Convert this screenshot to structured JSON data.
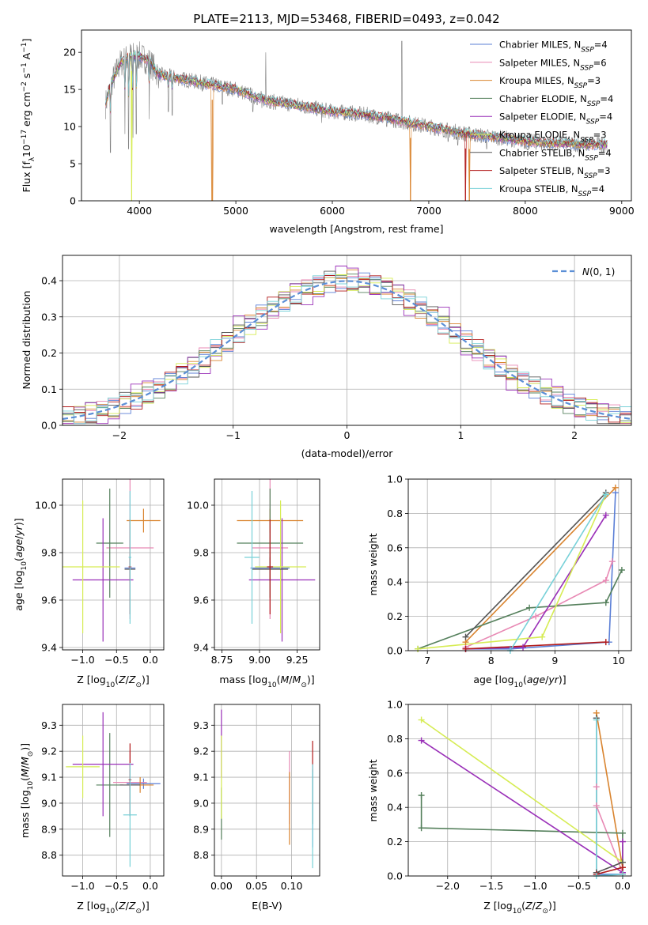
{
  "figure_title": "PLATE=2113, MJD=53468, FIBERID=0493, z=0.042",
  "colors": {
    "chabrier_miles": "#5b7fd6",
    "salpeter_miles": "#e889b4",
    "kroupa_miles": "#d9842f",
    "chabrier_elodie": "#55805c",
    "salpeter_elodie": "#9a30b8",
    "kroupa_elodie": "#d6ec54",
    "chabrier_stelib": "#555555",
    "salpeter_stelib": "#b21b1b",
    "kroupa_stelib": "#78d1d8",
    "data": "#808080",
    "normal": "#5b8fd6"
  },
  "chart_data": [
    {
      "id": "spectrum",
      "type": "line",
      "title": "PLATE=2113, MJD=53468, FIBERID=0493, z=0.042",
      "xlabel": "wavelength [Angstrom, rest frame]",
      "ylabel": "Flux [f_λ 10^-17 erg cm^-2 s^-1 A^-1]",
      "xlim": [
        3400,
        9100
      ],
      "ylim": [
        0,
        23
      ],
      "xticks": [
        4000,
        5000,
        6000,
        7000,
        8000,
        9000
      ],
      "yticks": [
        0,
        5,
        10,
        15,
        20
      ],
      "grid": false,
      "legend_position": "top-right",
      "series": [
        {
          "name": "Chabrier MILES, N_SSP=4",
          "color_key": "chabrier_miles",
          "sub": "SSP",
          "tail": "=4"
        },
        {
          "name": "Salpeter MILES, N_SSP=6",
          "color_key": "salpeter_miles",
          "sub": "SSP",
          "tail": "=6"
        },
        {
          "name": "Kroupa MILES, N_SSP=3",
          "color_key": "kroupa_miles",
          "sub": "SSP",
          "tail": "=3"
        },
        {
          "name": "Chabrier ELODIE, N_SSP=4",
          "color_key": "chabrier_elodie",
          "sub": "SSP",
          "tail": "=4"
        },
        {
          "name": "Salpeter ELODIE, N_SSP=4",
          "color_key": "salpeter_elodie",
          "sub": "SSP",
          "tail": "=4"
        },
        {
          "name": "Kroupa ELODIE, N_SSP=3",
          "color_key": "kroupa_elodie",
          "sub": "SSP",
          "tail": "=3"
        },
        {
          "name": "Chabrier STELIB, N_SSP=4",
          "color_key": "chabrier_stelib",
          "sub": "SSP",
          "tail": "=4"
        },
        {
          "name": "Salpeter STELIB, N_SSP=3",
          "color_key": "salpeter_stelib",
          "sub": "SSP",
          "tail": "=3"
        },
        {
          "name": "Kroupa STELIB, N_SSP=4",
          "color_key": "kroupa_stelib",
          "sub": "SSP",
          "tail": "=4"
        }
      ],
      "continuum": {
        "x": [
          3650,
          3700,
          3800,
          3900,
          4000,
          4100,
          4200,
          4400,
          4600,
          4800,
          5000,
          5200,
          5400,
          5600,
          5800,
          6000,
          6200,
          6400,
          6600,
          6800,
          7000,
          7200,
          7400,
          7600,
          7800,
          8000,
          8200,
          8400,
          8600,
          8800
        ],
        "y": [
          13.0,
          15.5,
          18.5,
          19.5,
          19.5,
          18.8,
          17.0,
          16.5,
          16.0,
          15.5,
          15.0,
          14.0,
          13.3,
          13.0,
          12.5,
          12.0,
          11.8,
          11.5,
          11.0,
          10.5,
          10.0,
          9.5,
          9.0,
          8.7,
          8.4,
          8.0,
          7.8,
          7.7,
          7.6,
          7.6
        ]
      },
      "absorption_lines": [
        {
          "x": 3700,
          "y": 6.5
        },
        {
          "x": 3850,
          "y": 9.0
        },
        {
          "x": 3889,
          "y": 7.0
        },
        {
          "x": 3934,
          "y": 8.5
        },
        {
          "x": 3969,
          "y": 9.0
        },
        {
          "x": 4102,
          "y": 11.0
        },
        {
          "x": 4300,
          "y": 12.0
        },
        {
          "x": 4340,
          "y": 11.5
        },
        {
          "x": 4861,
          "y": 13.0
        },
        {
          "x": 5175,
          "y": 12.0
        },
        {
          "x": 5270,
          "y": 12.5
        },
        {
          "x": 5890,
          "y": 10.5
        },
        {
          "x": 6563,
          "y": 10.0
        },
        {
          "x": 7200,
          "y": 8.0
        },
        {
          "x": 7300,
          "y": 7.5
        },
        {
          "x": 7600,
          "y": 7.0
        }
      ],
      "emission_lines": [
        {
          "x": 5310,
          "y": 20.0
        },
        {
          "x": 6720,
          "y": 21.5
        }
      ],
      "model_dropouts": [
        {
          "x": 3920,
          "color_key": "kroupa_elodie"
        },
        {
          "x": 4755,
          "color_key": "kroupa_miles"
        },
        {
          "x": 6810,
          "color_key": "kroupa_miles"
        },
        {
          "x": 7380,
          "color_key": "salpeter_stelib"
        },
        {
          "x": 7420,
          "color_key": "kroupa_miles"
        }
      ]
    },
    {
      "id": "residuals",
      "type": "line",
      "xlabel": "(data-model)/error",
      "ylabel": "Normed distribution",
      "xlim": [
        -2.5,
        2.5
      ],
      "ylim": [
        0,
        0.47
      ],
      "xticks": [
        -2,
        -1,
        0,
        1,
        2
      ],
      "yticks": [
        0.0,
        0.1,
        0.2,
        0.3,
        0.4
      ],
      "grid": true,
      "legend_position": "top-right",
      "legend": "N(0,1)",
      "bin_width": 0.1,
      "bins_x0": -2.5,
      "reference_curve": {
        "name": "N(0,1)",
        "mu": 0,
        "sigma": 1
      },
      "hist_jitter": [
        0.012,
        -0.018,
        0.022,
        -0.01,
        0.03,
        -0.025,
        0.015,
        -0.03,
        0.008,
        0.026,
        -0.014,
        0.02,
        -0.022,
        0.035,
        -0.008,
        0.018,
        -0.028,
        0.01
      ]
    },
    {
      "id": "age_vs_Z",
      "type": "scatter",
      "xlabel": "Z [log10(Z/Z☉)]",
      "ylabel": "age [log10(age/yr)]",
      "xlim": [
        -1.3,
        0.2
      ],
      "ylim": [
        9.39,
        10.11
      ],
      "xticks": [
        -1.0,
        -0.5,
        0.0
      ],
      "yticks": [
        9.4,
        9.6,
        9.8,
        10.0
      ],
      "points": [
        {
          "x": -0.3,
          "y": 9.735,
          "xerr": 0.08,
          "yerr": 0.04,
          "color_key": "chabrier_miles"
        },
        {
          "x": -0.3,
          "y": 9.82,
          "xerr": 0.35,
          "yerr": 0.3,
          "color_key": "salpeter_miles"
        },
        {
          "x": -0.1,
          "y": 9.935,
          "xerr": 0.25,
          "yerr": 0.05,
          "color_key": "kroupa_miles"
        },
        {
          "x": -0.6,
          "y": 9.84,
          "xerr": 0.2,
          "yerr": 0.23,
          "color_key": "chabrier_elodie"
        },
        {
          "x": -0.7,
          "y": 9.685,
          "xerr": 0.45,
          "yerr": 0.26,
          "color_key": "salpeter_elodie"
        },
        {
          "x": -1.0,
          "y": 9.74,
          "xerr": 0.55,
          "yerr": 0.28,
          "color_key": "kroupa_elodie"
        },
        {
          "x": -0.3,
          "y": 9.73,
          "xerr": 0.08,
          "yerr": 0.05,
          "color_key": "chabrier_stelib"
        },
        {
          "x": -0.3,
          "y": 9.74,
          "xerr": 0.02,
          "yerr": 0.2,
          "color_key": "salpeter_stelib"
        },
        {
          "x": -0.3,
          "y": 9.78,
          "xerr": 0.02,
          "yerr": 0.28,
          "color_key": "kroupa_stelib"
        }
      ]
    },
    {
      "id": "age_vs_mass",
      "type": "scatter",
      "xlabel": "mass [log10(M/M☉)]",
      "ylabel": "",
      "xlim": [
        8.7,
        9.4
      ],
      "ylim": [
        9.39,
        10.11
      ],
      "xticks": [
        8.75,
        9.0,
        9.25
      ],
      "yticks": [
        9.4,
        9.6,
        9.8,
        10.0
      ],
      "points": [
        {
          "x": 9.07,
          "y": 9.735,
          "xerr": 0.13,
          "yerr": 0.04,
          "color_key": "chabrier_miles"
        },
        {
          "x": 9.07,
          "y": 9.82,
          "xerr": 0.12,
          "yerr": 0.3,
          "color_key": "salpeter_miles"
        },
        {
          "x": 9.07,
          "y": 9.935,
          "xerr": 0.22,
          "yerr": 0.05,
          "color_key": "kroupa_miles"
        },
        {
          "x": 9.07,
          "y": 9.84,
          "xerr": 0.22,
          "yerr": 0.23,
          "color_key": "chabrier_elodie"
        },
        {
          "x": 9.15,
          "y": 9.685,
          "xerr": 0.22,
          "yerr": 0.26,
          "color_key": "salpeter_elodie"
        },
        {
          "x": 9.14,
          "y": 9.74,
          "xerr": 0.17,
          "yerr": 0.28,
          "color_key": "kroupa_elodie"
        },
        {
          "x": 9.07,
          "y": 9.73,
          "xerr": 0.12,
          "yerr": 0.05,
          "color_key": "chabrier_stelib"
        },
        {
          "x": 9.07,
          "y": 9.74,
          "xerr": 0.02,
          "yerr": 0.2,
          "color_key": "salpeter_stelib"
        },
        {
          "x": 8.95,
          "y": 9.78,
          "xerr": 0.05,
          "yerr": 0.28,
          "color_key": "kroupa_stelib"
        }
      ]
    },
    {
      "id": "mass_weight_vs_age",
      "type": "line",
      "xlabel": "age [log10(age/yr)]",
      "ylabel": "mass weight",
      "xlim": [
        6.7,
        10.2
      ],
      "ylim": [
        0,
        1
      ],
      "xticks": [
        7,
        8,
        9,
        10
      ],
      "yticks": [
        0.0,
        0.2,
        0.4,
        0.6,
        0.8,
        1.0
      ],
      "grid": true,
      "series": [
        {
          "color_key": "chabrier_miles",
          "x": [
            7.6,
            8.3,
            9.85,
            9.95
          ],
          "y": [
            0.01,
            0.01,
            0.05,
            0.92
          ]
        },
        {
          "color_key": "salpeter_miles",
          "x": [
            7.6,
            8.7,
            9.8,
            9.9
          ],
          "y": [
            0.02,
            0.2,
            0.41,
            0.52
          ]
        },
        {
          "color_key": "kroupa_miles",
          "x": [
            7.6,
            9.95
          ],
          "y": [
            0.05,
            0.95
          ]
        },
        {
          "color_key": "chabrier_elodie",
          "x": [
            6.85,
            8.6,
            9.8,
            10.05
          ],
          "y": [
            0.01,
            0.25,
            0.28,
            0.47
          ]
        },
        {
          "color_key": "salpeter_elodie",
          "x": [
            7.6,
            8.5,
            9.8
          ],
          "y": [
            0.01,
            0.02,
            0.79
          ]
        },
        {
          "color_key": "kroupa_elodie",
          "x": [
            6.85,
            8.8,
            9.8
          ],
          "y": [
            0.01,
            0.08,
            0.91
          ]
        },
        {
          "color_key": "chabrier_stelib",
          "x": [
            7.6,
            9.8
          ],
          "y": [
            0.08,
            0.92
          ]
        },
        {
          "color_key": "salpeter_stelib",
          "x": [
            7.6,
            9.8
          ],
          "y": [
            0.01,
            0.05
          ]
        },
        {
          "color_key": "kroupa_stelib",
          "x": [
            8.3,
            9.8
          ],
          "y": [
            0.0,
            0.91
          ]
        }
      ]
    },
    {
      "id": "mass_vs_Z",
      "type": "scatter",
      "xlabel": "Z [log10(Z/Z☉)]",
      "ylabel": "mass [log10(M/M☉)]",
      "xlim": [
        -1.3,
        0.2
      ],
      "ylim": [
        8.72,
        9.38
      ],
      "xticks": [
        -1.0,
        -0.5,
        0.0
      ],
      "yticks": [
        8.8,
        8.9,
        9.0,
        9.1,
        9.2,
        9.3
      ],
      "points": [
        {
          "x": -0.1,
          "y": 9.075,
          "xerr": 0.25,
          "yerr": 0.02,
          "color_key": "chabrier_miles"
        },
        {
          "x": -0.3,
          "y": 9.08,
          "xerr": 0.25,
          "yerr": 0.12,
          "color_key": "salpeter_miles"
        },
        {
          "x": -0.15,
          "y": 9.07,
          "xerr": 0.2,
          "yerr": 0.03,
          "color_key": "kroupa_miles"
        },
        {
          "x": -0.6,
          "y": 9.07,
          "xerr": 0.2,
          "yerr": 0.2,
          "color_key": "chabrier_elodie"
        },
        {
          "x": -0.7,
          "y": 9.15,
          "xerr": 0.45,
          "yerr": 0.2,
          "color_key": "salpeter_elodie"
        },
        {
          "x": -1.0,
          "y": 9.14,
          "xerr": 0.25,
          "yerr": 0.12,
          "color_key": "kroupa_elodie"
        },
        {
          "x": -0.3,
          "y": 9.07,
          "xerr": 0.15,
          "yerr": 0.02,
          "color_key": "chabrier_stelib"
        },
        {
          "x": -0.3,
          "y": 9.09,
          "xerr": 0.02,
          "yerr": 0.14,
          "color_key": "salpeter_stelib"
        },
        {
          "x": -0.3,
          "y": 8.955,
          "xerr": 0.1,
          "yerr": 0.2,
          "color_key": "kroupa_stelib"
        }
      ]
    },
    {
      "id": "mass_vs_ebv",
      "type": "scatter",
      "xlabel": "E(B-V)",
      "ylabel": "",
      "xlim": [
        -0.01,
        0.14
      ],
      "ylim": [
        8.72,
        9.38
      ],
      "xticks": [
        0.0,
        0.05,
        0.1
      ],
      "xtick_labels": [
        "0.00",
        "0.05",
        "0.10"
      ],
      "yticks": [
        8.8,
        8.9,
        9.0,
        9.1,
        9.2,
        9.3
      ],
      "points": [
        {
          "x": 0.13,
          "y": 8.98,
          "yerr": 0.15,
          "color_key": "chabrier_miles"
        },
        {
          "x": 0.097,
          "y": 9.06,
          "yerr": 0.14,
          "color_key": "salpeter_miles"
        },
        {
          "x": 0.097,
          "y": 8.98,
          "yerr": 0.14,
          "color_key": "kroupa_miles"
        },
        {
          "x": 0.0,
          "y": 8.96,
          "yerr": 0.1,
          "color_key": "chabrier_elodie"
        },
        {
          "x": 0.0,
          "y": 9.23,
          "yerr": 0.13,
          "color_key": "salpeter_elodie"
        },
        {
          "x": 0.0,
          "y": 9.1,
          "yerr": 0.16,
          "color_key": "kroupa_elodie"
        },
        {
          "x": 0.13,
          "y": 9.02,
          "yerr": 0.1,
          "color_key": "chabrier_stelib"
        },
        {
          "x": 0.13,
          "y": 9.18,
          "yerr": 0.06,
          "color_key": "salpeter_stelib"
        },
        {
          "x": 0.13,
          "y": 8.95,
          "yerr": 0.2,
          "color_key": "kroupa_stelib"
        }
      ]
    },
    {
      "id": "mass_weight_vs_Z",
      "type": "line",
      "xlabel": "Z [log10(Z/Z☉)]",
      "ylabel": "mass weight",
      "xlim": [
        -2.45,
        0.1
      ],
      "ylim": [
        0,
        1
      ],
      "xticks": [
        -2.0,
        -1.5,
        -1.0,
        -0.5,
        0.0
      ],
      "yticks": [
        0.0,
        0.2,
        0.4,
        0.6,
        0.8,
        1.0
      ],
      "grid": true,
      "series": [
        {
          "color_key": "chabrier_miles",
          "x": [
            -0.3,
            -0.3,
            0.0,
            0.0
          ],
          "y": [
            0.92,
            0.01,
            0.01,
            0.05
          ]
        },
        {
          "color_key": "salpeter_miles",
          "x": [
            -0.3,
            -0.3,
            0.0,
            0.0
          ],
          "y": [
            0.52,
            0.41,
            0.02,
            0.2
          ]
        },
        {
          "color_key": "kroupa_miles",
          "x": [
            -0.3,
            0.0
          ],
          "y": [
            0.95,
            0.05
          ]
        },
        {
          "color_key": "chabrier_elodie",
          "x": [
            -2.3,
            -2.3,
            0.0,
            0.0
          ],
          "y": [
            0.47,
            0.28,
            0.25,
            0.01
          ]
        },
        {
          "color_key": "salpeter_elodie",
          "x": [
            -2.3,
            0.0,
            0.0
          ],
          "y": [
            0.79,
            0.02,
            0.2
          ]
        },
        {
          "color_key": "kroupa_elodie",
          "x": [
            -2.3,
            0.0,
            0.0
          ],
          "y": [
            0.91,
            0.08,
            0.01
          ]
        },
        {
          "color_key": "chabrier_stelib",
          "x": [
            -0.3,
            -0.3,
            0.0
          ],
          "y": [
            0.92,
            0.02,
            0.08
          ]
        },
        {
          "color_key": "salpeter_stelib",
          "x": [
            -0.3,
            0.0,
            0.0
          ],
          "y": [
            0.01,
            0.05,
            0.01
          ]
        },
        {
          "color_key": "kroupa_stelib",
          "x": [
            -0.3,
            -0.3,
            0.0
          ],
          "y": [
            0.91,
            0.0,
            0.01
          ]
        }
      ]
    }
  ]
}
